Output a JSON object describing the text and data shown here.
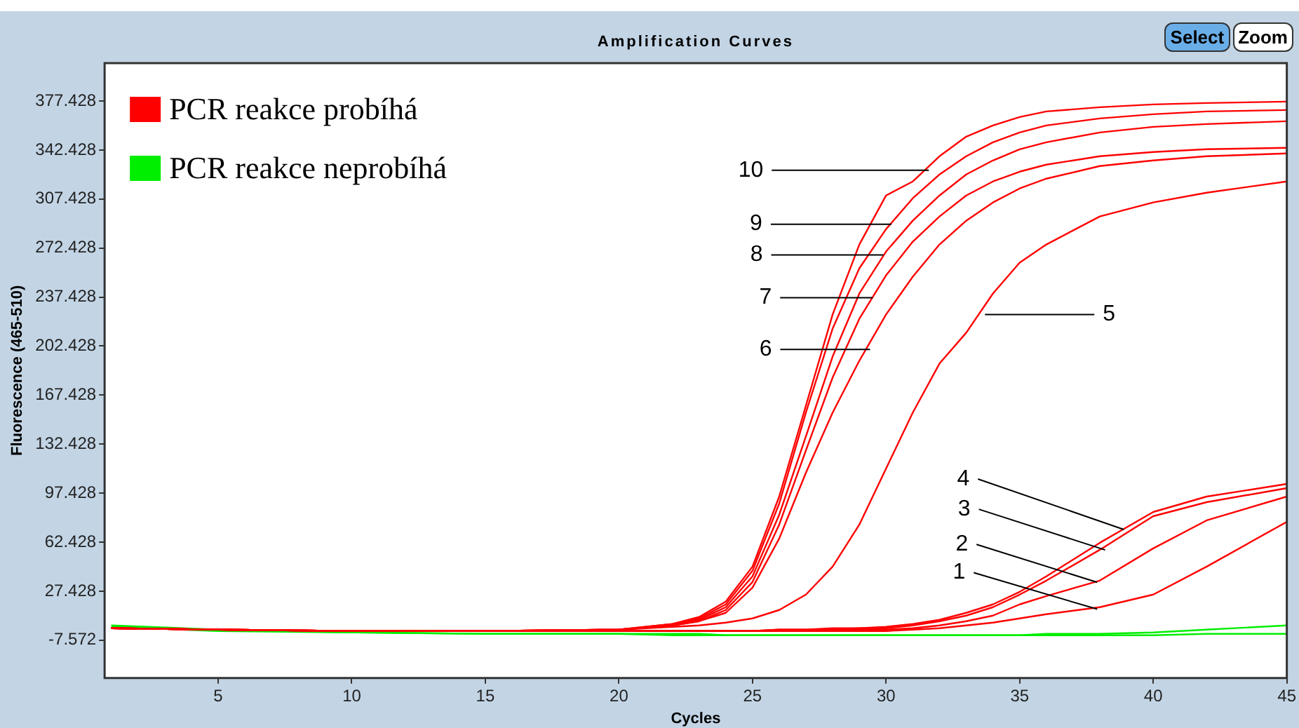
{
  "chart_data": {
    "type": "line",
    "title": "Amplification Curves",
    "xlabel": "Cycles",
    "ylabel": "Fluorescence (465-510)",
    "x": [
      1,
      5,
      10,
      15,
      20,
      22,
      23,
      24,
      25,
      26,
      27,
      28,
      29,
      30,
      31,
      32,
      33,
      34,
      35,
      36,
      38,
      40,
      42,
      45
    ],
    "xlim": [
      0.75,
      45
    ],
    "xticks": [
      5,
      10,
      15,
      20,
      25,
      30,
      35,
      40,
      45
    ],
    "ylim": [
      -34.6,
      404.5
    ],
    "yticks": [
      -7.572,
      27.428,
      62.428,
      97.428,
      132.428,
      167.428,
      202.428,
      237.428,
      272.428,
      307.428,
      342.428,
      377.428
    ],
    "grid": false,
    "legend": "top left",
    "marker": "none",
    "line_style": "solid",
    "series": [
      {
        "name": "PCR reakce probíhá",
        "color": "#ff0000",
        "values": [
          1,
          0,
          -1,
          -1,
          0,
          4,
          9,
          20,
          45,
          95,
          160,
          225,
          275,
          310,
          320,
          338,
          352,
          360,
          366,
          370,
          373,
          375,
          376,
          377
        ]
      },
      {
        "color": "#ff0000",
        "values": [
          1,
          0,
          -1,
          -1,
          0,
          4,
          8,
          18,
          42,
          90,
          155,
          215,
          258,
          286,
          308,
          325,
          338,
          348,
          355,
          360,
          365,
          368,
          370,
          371
        ]
      },
      {
        "color": "#ff0000",
        "values": [
          1,
          0,
          -1,
          -1,
          0,
          3,
          7,
          16,
          38,
          82,
          138,
          195,
          240,
          270,
          292,
          310,
          325,
          335,
          343,
          348,
          355,
          359,
          361,
          363
        ]
      },
      {
        "color": "#ff0000",
        "values": [
          1,
          0,
          -1,
          -1,
          0,
          3,
          6,
          14,
          34,
          75,
          128,
          180,
          222,
          253,
          277,
          295,
          310,
          320,
          327,
          332,
          338,
          341,
          343,
          344
        ]
      },
      {
        "color": "#ff0000",
        "values": [
          1,
          0,
          -1,
          -1,
          0,
          3,
          6,
          12,
          30,
          65,
          112,
          155,
          192,
          225,
          252,
          275,
          292,
          305,
          315,
          322,
          331,
          335,
          338,
          340
        ]
      },
      {
        "color": "#ff0000",
        "values": [
          1,
          0,
          -1,
          -1,
          0,
          2,
          3,
          5,
          8,
          14,
          25,
          45,
          75,
          115,
          155,
          190,
          212,
          240,
          262,
          275,
          295,
          305,
          312,
          320
        ]
      },
      {
        "color": "#ff0000",
        "values": [
          1,
          0,
          -1,
          -1,
          -1,
          -1,
          -1,
          -1,
          -1,
          0,
          0,
          1,
          1,
          2,
          4,
          7,
          12,
          18,
          27,
          38,
          62,
          84,
          95,
          104
        ]
      },
      {
        "color": "#ff0000",
        "values": [
          1,
          0,
          -1,
          -1,
          -1,
          -1,
          -1,
          -1,
          -1,
          0,
          0,
          0,
          1,
          1,
          3,
          6,
          10,
          16,
          25,
          35,
          57,
          81,
          91,
          101
        ]
      },
      {
        "color": "#ff0000",
        "values": [
          1,
          0,
          -1,
          -1,
          -1,
          -1,
          -1,
          -1,
          -1,
          -1,
          -1,
          0,
          0,
          0,
          1,
          3,
          6,
          10,
          18,
          24,
          35,
          58,
          78,
          95
        ]
      },
      {
        "color": "#ff0000",
        "values": [
          1,
          0,
          -1,
          -1,
          -1,
          -1,
          -1,
          -1,
          -1,
          -1,
          -1,
          -1,
          -1,
          -1,
          0,
          1,
          3,
          5,
          8,
          11,
          16,
          25,
          45,
          77
        ]
      },
      {
        "name": "PCR reakce neprobíhá",
        "color": "#00ee00",
        "values": [
          3,
          0,
          -2,
          -3,
          -3,
          -3,
          -3,
          -4,
          -4,
          -4,
          -4,
          -4,
          -4,
          -4,
          -4,
          -4,
          -4,
          -4,
          -4,
          -3,
          -3,
          -2,
          0,
          3
        ]
      },
      {
        "color": "#00ee00",
        "values": [
          2,
          -1,
          -2,
          -3,
          -3,
          -4,
          -4,
          -4,
          -4,
          -4,
          -4,
          -4,
          -4,
          -4,
          -4,
          -4,
          -4,
          -4,
          -4,
          -4,
          -4,
          -4,
          -3,
          -3
        ]
      }
    ],
    "annotations": [
      {
        "text": "1",
        "x": 37.9,
        "y": 14.6
      },
      {
        "text": "2",
        "x": 37.9,
        "y": 33.8
      },
      {
        "text": "3",
        "x": 38.2,
        "y": 56.9
      },
      {
        "text": "4",
        "x": 38.9,
        "y": 71.5
      },
      {
        "text": "5",
        "x": 33.7,
        "y": 225
      },
      {
        "text": "6",
        "x": 29.4,
        "y": 200
      },
      {
        "text": "7",
        "x": 29.5,
        "y": 237
      },
      {
        "text": "8",
        "x": 29.9,
        "y": 267.5
      },
      {
        "text": "9",
        "x": 30.2,
        "y": 289.5
      },
      {
        "text": "10",
        "x": 31.6,
        "y": 328
      },
      "Select",
      "Zoom"
    ]
  }
}
